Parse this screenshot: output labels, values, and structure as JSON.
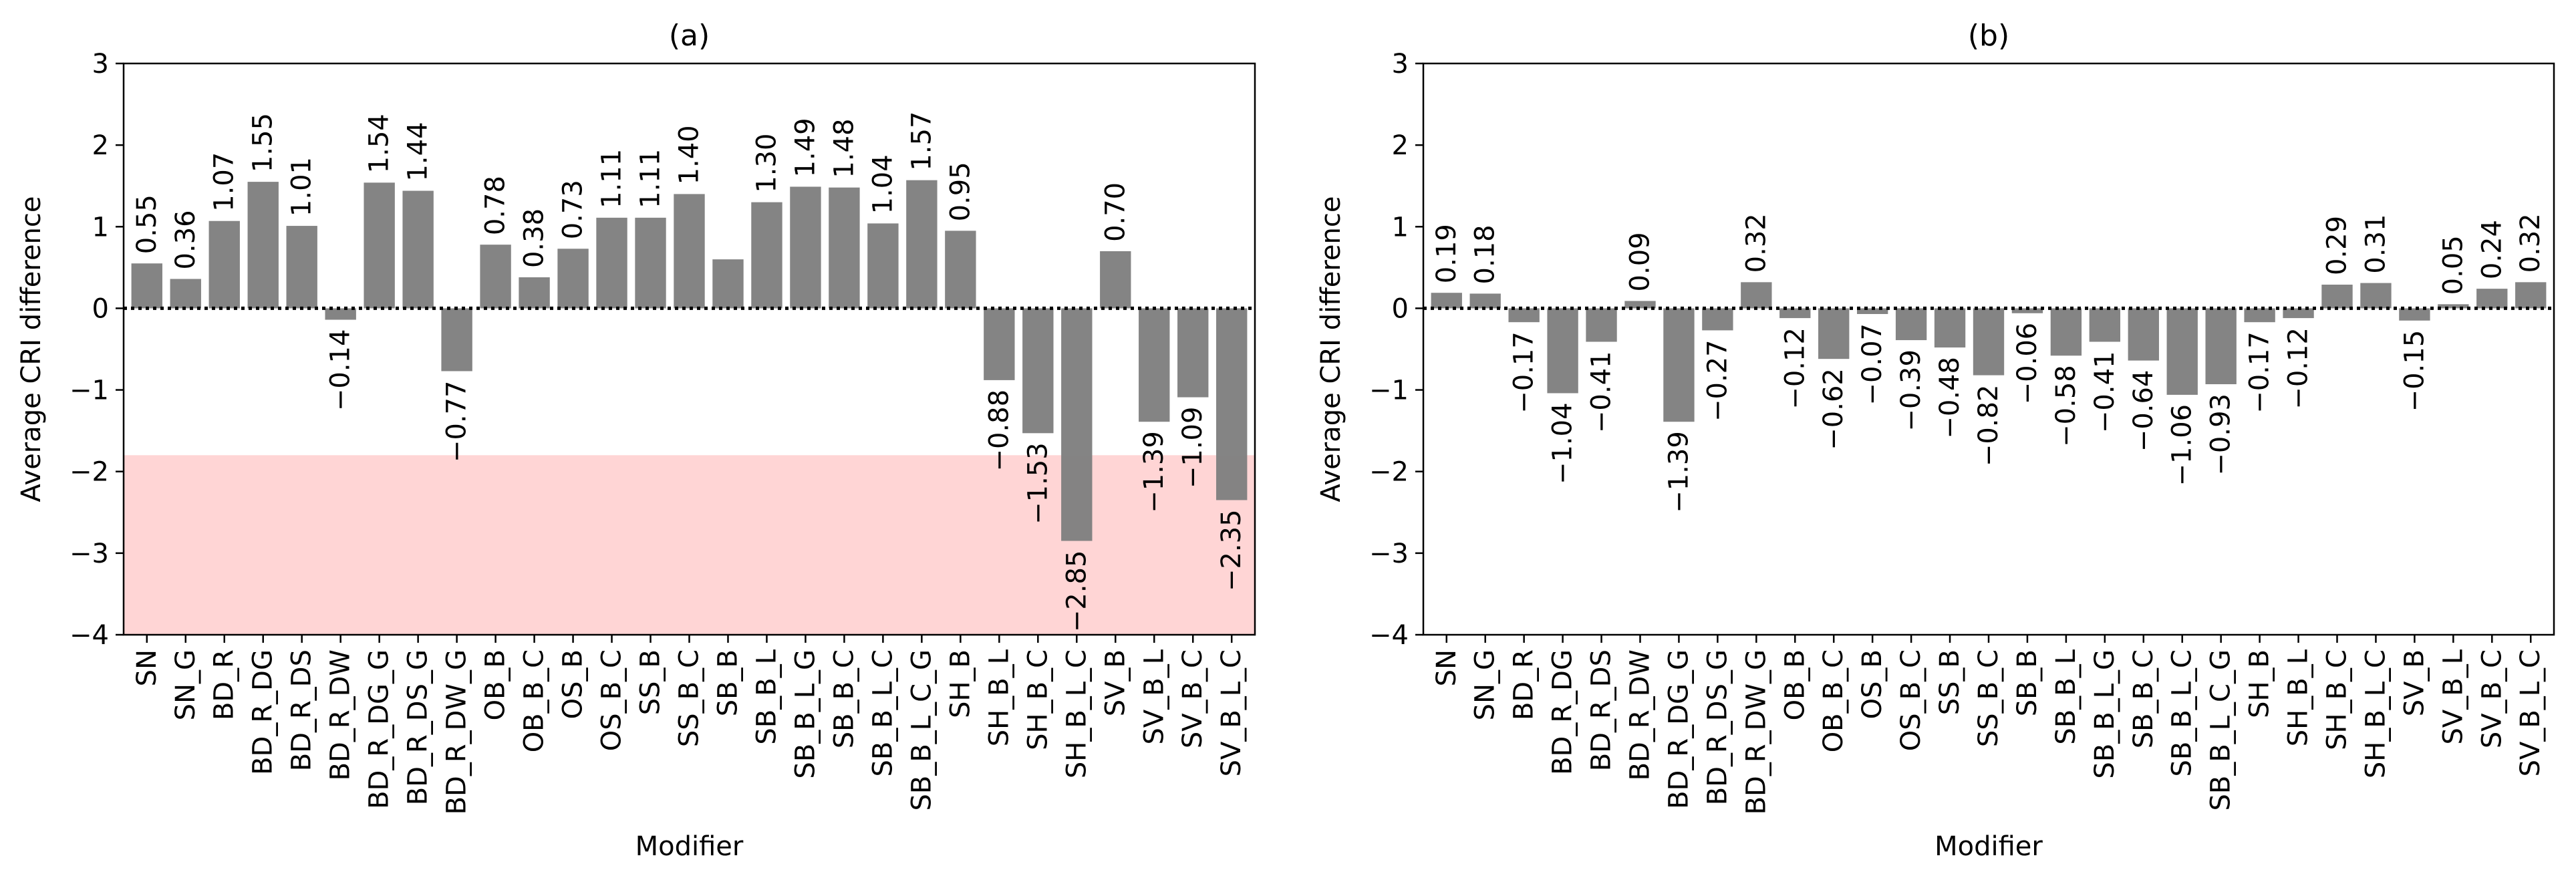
{
  "chart_data": [
    {
      "type": "bar",
      "title": "(a)",
      "xlabel": "Modifier",
      "ylabel": "Average CRI difference",
      "ylim": [
        -4,
        3
      ],
      "yticks": [
        "3",
        "2",
        "1",
        "0",
        "−1",
        "−2",
        "−3",
        "−4"
      ],
      "highlight_band": {
        "from": -4,
        "to": -1.8,
        "color": "#ffd5d5"
      },
      "zero_line": "dotted",
      "bar_color": "#808080",
      "categories": [
        "SN",
        "SN_G",
        "BD_R",
        "BD_R_DG",
        "BD_R_DS",
        "BD_R_DW",
        "BD_R_DG_G",
        "BD_R_DS_G",
        "BD_R_DW_G",
        "OB_B",
        "OB_B_C",
        "OS_B",
        "OS_B_C",
        "SS_B",
        "SS_B_C",
        "SB_B",
        "SB_B_L",
        "SB_B_L_G",
        "SB_B_C",
        "SB_B_L_C",
        "SB_B_L_C_G",
        "SH_B",
        "SH_B_L",
        "SH_B_C",
        "SH_B_L_C",
        "SV_B",
        "SV_B_L",
        "SV_B_C",
        "SV_B_L_C"
      ],
      "values": [
        0.55,
        0.36,
        1.07,
        1.55,
        1.01,
        -0.14,
        1.54,
        1.44,
        -0.77,
        0.78,
        0.38,
        0.73,
        1.11,
        1.11,
        1.4,
        0.6,
        1.3,
        1.49,
        1.48,
        1.04,
        1.57,
        0.95,
        -0.88,
        -1.53,
        -2.85,
        0.7,
        -1.39,
        -1.09,
        -2.35
      ],
      "labels": [
        "0.55",
        "0.36",
        "1.07",
        "1.55",
        "1.01",
        "−0.14",
        "1.54",
        "1.44",
        "−0.77",
        "0.78",
        "0.38",
        "0.73",
        "1.11",
        "1.11",
        "1.40",
        "0.60",
        "1.30",
        "1.49",
        "1.48",
        "1.04",
        "1.57",
        "0.95",
        "−0.88",
        "−1.53",
        "−2.85",
        "0.70",
        "−1.39",
        "−1.09",
        "−2.35"
      ],
      "label_visible": [
        true,
        true,
        true,
        true,
        true,
        true,
        true,
        true,
        true,
        true,
        true,
        true,
        true,
        true,
        true,
        false,
        true,
        true,
        true,
        true,
        true,
        true,
        true,
        true,
        true,
        true,
        true,
        true,
        true
      ]
    },
    {
      "type": "bar",
      "title": "(b)",
      "xlabel": "Modifier",
      "ylabel": "Average CRI difference",
      "ylim": [
        -4,
        3
      ],
      "yticks": [
        "3",
        "2",
        "1",
        "0",
        "−1",
        "−2",
        "−3",
        "−4"
      ],
      "zero_line": "dotted",
      "bar_color": "#808080",
      "categories": [
        "SN",
        "SN_G",
        "BD_R",
        "BD_R_DG",
        "BD_R_DS",
        "BD_R_DW",
        "BD_R_DG_G",
        "BD_R_DS_G",
        "BD_R_DW_G",
        "OB_B",
        "OB_B_C",
        "OS_B",
        "OS_B_C",
        "SS_B",
        "SS_B_C",
        "SB_B",
        "SB_B_L",
        "SB_B_L_G",
        "SB_B_C",
        "SB_B_L_C",
        "SB_B_L_C_G",
        "SH_B",
        "SH_B_L",
        "SH_B_C",
        "SH_B_L_C",
        "SV_B",
        "SV_B_L",
        "SV_B_C",
        "SV_B_L_C"
      ],
      "values": [
        0.19,
        0.18,
        -0.17,
        -1.04,
        -0.41,
        0.09,
        -1.39,
        -0.27,
        0.32,
        -0.12,
        -0.62,
        -0.07,
        -0.39,
        -0.48,
        -0.82,
        -0.06,
        -0.58,
        -0.41,
        -0.64,
        -1.06,
        -0.93,
        -0.17,
        -0.12,
        0.29,
        0.31,
        -0.15,
        0.05,
        0.24,
        0.32
      ],
      "labels": [
        "0.19",
        "0.18",
        "−0.17",
        "−1.04",
        "−0.41",
        "0.09",
        "−1.39",
        "−0.27",
        "0.32",
        "−0.12",
        "−0.62",
        "−0.07",
        "−0.39",
        "−0.48",
        "−0.82",
        "−0.06",
        "−0.58",
        "−0.41",
        "−0.64",
        "−1.06",
        "−0.93",
        "−0.17",
        "−0.12",
        "0.29",
        "0.31",
        "−0.15",
        "0.05",
        "0.24",
        "0.32"
      ],
      "label_visible": [
        true,
        true,
        true,
        true,
        true,
        true,
        true,
        true,
        true,
        true,
        true,
        true,
        true,
        true,
        true,
        true,
        true,
        true,
        true,
        true,
        true,
        true,
        true,
        true,
        true,
        true,
        true,
        true,
        true
      ]
    }
  ]
}
